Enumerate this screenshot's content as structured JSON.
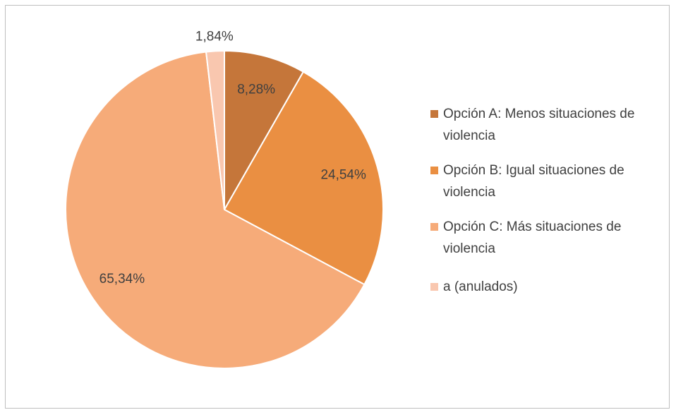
{
  "chart_data": {
    "type": "pie",
    "categories": [
      "Opción A: Menos situaciones de violencia",
      "Opción B: Igual situaciones de violencia",
      "Opción C: Más situaciones de violencia",
      "a (anulados)"
    ],
    "values": [
      8.28,
      24.54,
      65.34,
      1.84
    ],
    "value_labels": [
      "8,28%",
      "24,54%",
      "65,34%",
      "1,84%"
    ],
    "colors": [
      "#c5763a",
      "#ea8f42",
      "#f6ab79",
      "#f9c7af"
    ],
    "legend": "right"
  }
}
